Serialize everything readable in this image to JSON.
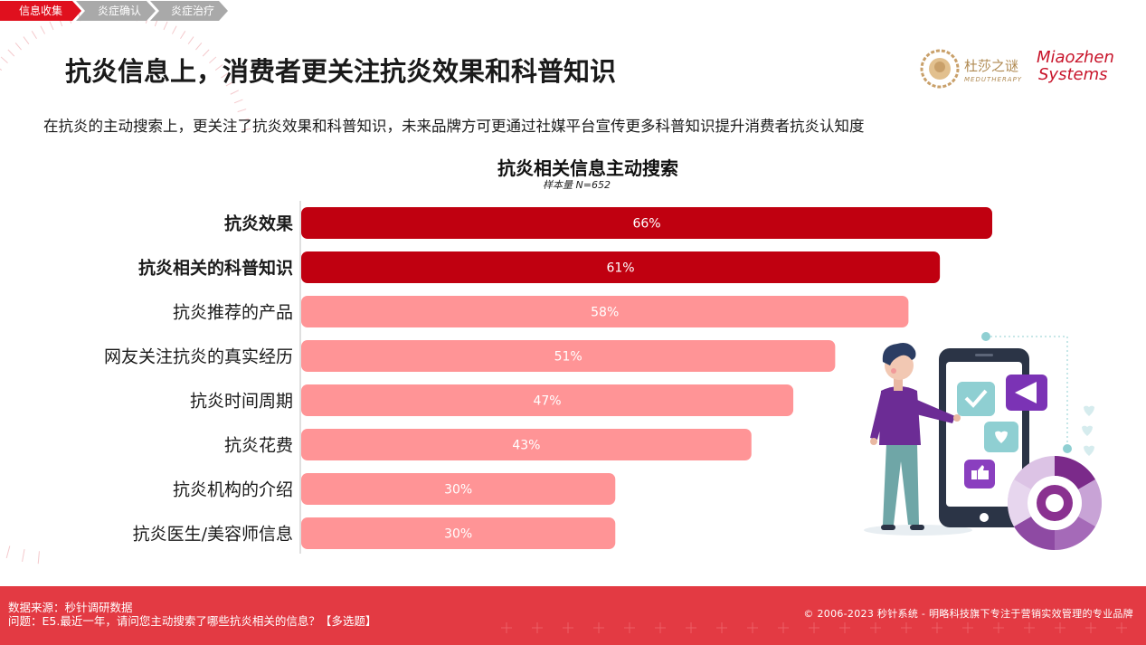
{
  "nav": {
    "tabs": [
      {
        "label": "信息收集",
        "active": true
      },
      {
        "label": "炎症确认",
        "active": false
      },
      {
        "label": "炎症治疗",
        "active": false
      }
    ]
  },
  "header": {
    "title": "抗炎信息上，消费者更关注抗炎效果和科普知识",
    "subtitle": "在抗炎的主动搜索上，更关注了抗炎效果和科普知识，未来品牌方可更通过社媒平台宣传更多科普知识提升消费者抗炎认知度"
  },
  "brands": {
    "brand1_name": "杜莎之谜",
    "brand1_sub": "MEDUTHERAPY",
    "brand2_line1": "Miaozhen",
    "brand2_line2": "Systems"
  },
  "chart_data": {
    "type": "bar",
    "orientation": "horizontal",
    "title": "抗炎相关信息主动搜索",
    "subtitle": "样本量 N=652",
    "categories": [
      "抗炎效果",
      "抗炎相关的科普知识",
      "抗炎推荐的产品",
      "网友关注抗炎的真实经历",
      "抗炎时间周期",
      "抗炎花费",
      "抗炎机构的介绍",
      "抗炎医生/美容师信息"
    ],
    "values": [
      66,
      61,
      58,
      51,
      47,
      43,
      30,
      30
    ],
    "value_labels": [
      "66%",
      "61%",
      "58%",
      "51%",
      "47%",
      "43%",
      "30%",
      "30%"
    ],
    "highlighted": [
      true,
      true,
      false,
      false,
      false,
      false,
      false,
      false
    ],
    "unit": "%",
    "xlim": [
      0,
      70
    ],
    "colors": {
      "highlight": "#c00010",
      "normal": "#ff9496"
    }
  },
  "footer": {
    "source": "数据来源：秒针调研数据",
    "question": "问题：E5.最近一年，请问您主动搜索了哪些抗炎相关的信息？【多选题】",
    "copyright": "© 2006-2023 秒针系统 - 明略科技旗下专注于营销实效管理的专业品牌"
  }
}
